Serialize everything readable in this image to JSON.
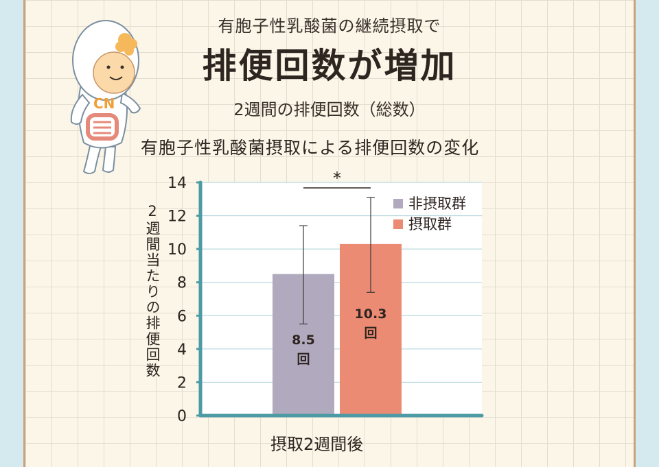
{
  "header": {
    "subtitle": "有胞子性乳酸菌の継続摂取で",
    "title": "排便回数が増加",
    "period": "2週間の排便回数（総数）"
  },
  "mascot": {
    "badge": "CN",
    "icon": "bacteria-mascot-icon"
  },
  "colors": {
    "background": "#d4eaee",
    "paper": "#fbf6e8",
    "axis": "#4b9aa4",
    "non_intake": "#b1a9be",
    "intake": "#ec8b74"
  },
  "chart_data": {
    "type": "bar",
    "title": "有胞子性乳酸菌摂取による排便回数の変化",
    "xlabel": "摂取2週間後",
    "ylabel": "2週間当たりの排便回数",
    "ylim": [
      0,
      14
    ],
    "yticks": [
      0,
      2,
      4,
      6,
      8,
      10,
      12,
      14
    ],
    "grid": true,
    "legend_position": "top-right",
    "series": [
      {
        "name": "非摂取群",
        "value": 8.5,
        "error_low": 5.5,
        "error_high": 11.4,
        "label": "8.5",
        "unit": "回",
        "color": "#b1a9be"
      },
      {
        "name": "摂取群",
        "value": 10.3,
        "error_low": 7.4,
        "error_high": 13.1,
        "label": "10.3",
        "unit": "回",
        "color": "#ec8b74"
      }
    ],
    "significance": {
      "label": "*",
      "from": 0,
      "to": 1
    }
  }
}
